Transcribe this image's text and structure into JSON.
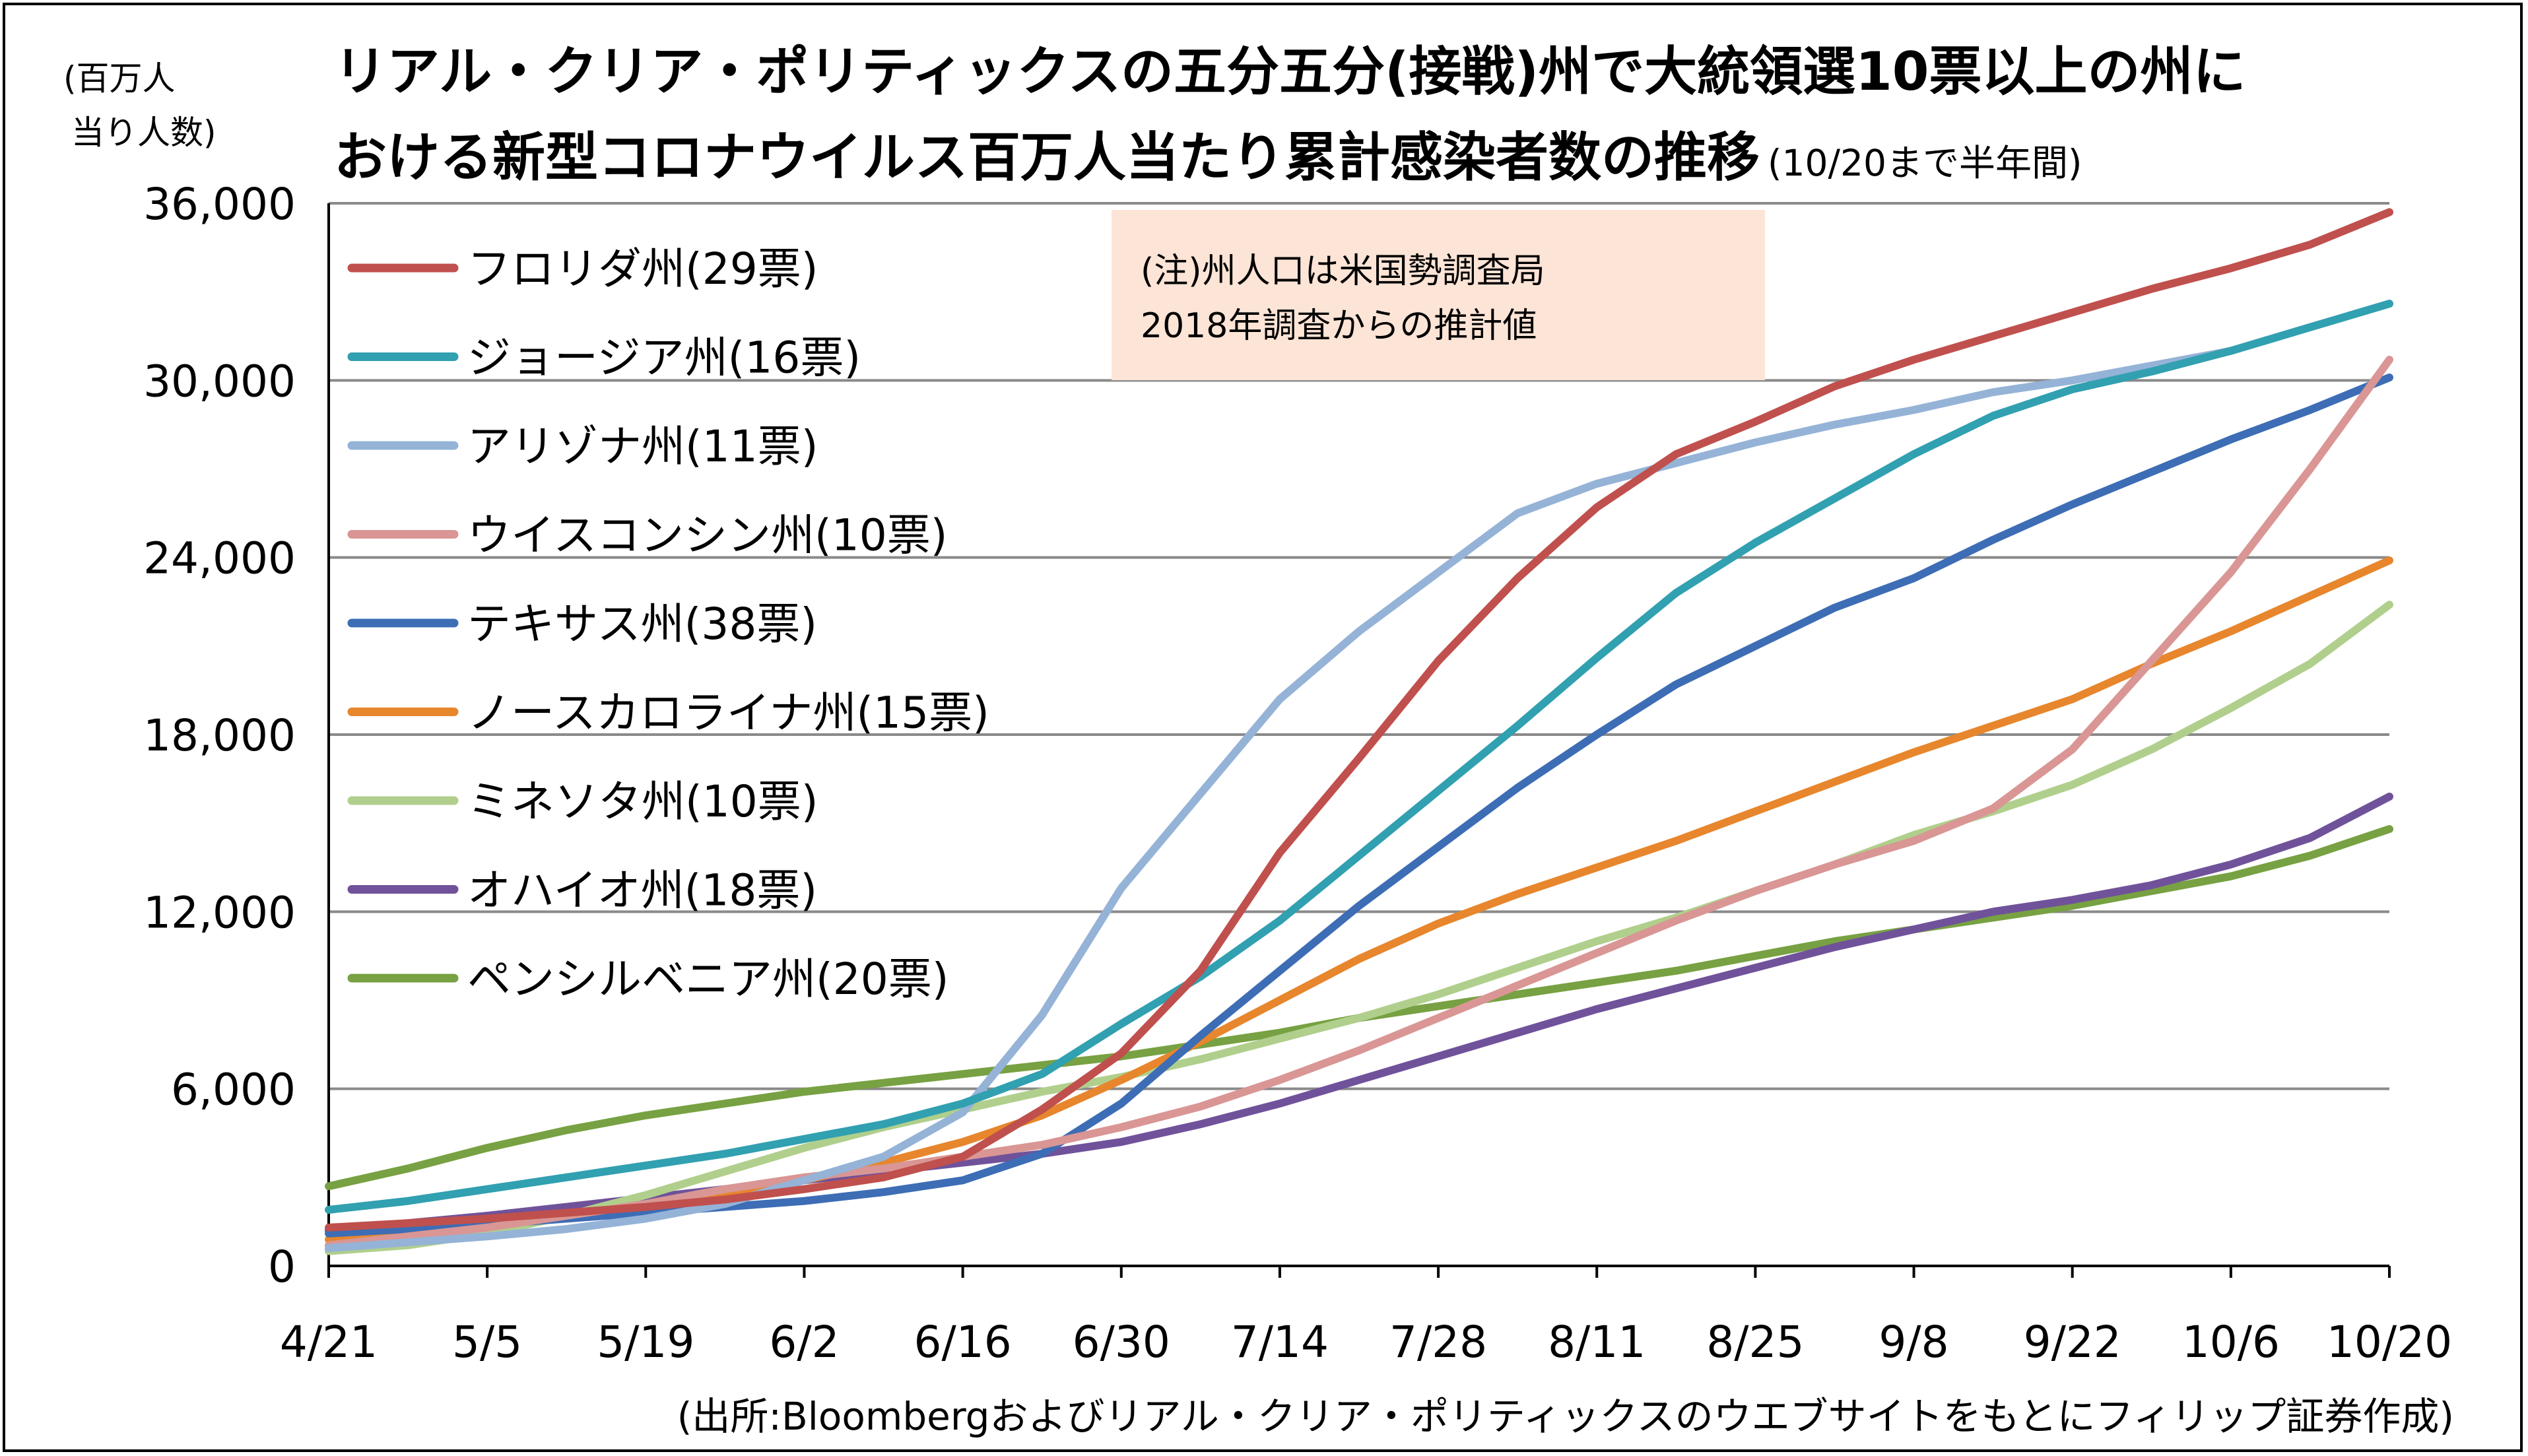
{
  "y_axis_label": [
    "(百万人",
    "当り人数)"
  ],
  "title": {
    "line1": "リアル・クリア・ポリティックスの五分五分(接戦)州で大統領選10票以上の州に",
    "line2": "おける新型コロナウイルス百万人当たり累計感染者数の推移",
    "line2_note": "(10/20まで半年間)"
  },
  "note": {
    "line1": "(注)州人口は米国勢調査局",
    "line2": "2018年調査からの推計値",
    "background": "#fce4d6"
  },
  "source": "(出所:Bloombergおよびリアル・クリア・ポリティックスのウエブサイトをもとにフィリップ証券作成)",
  "chart_data": {
    "type": "line",
    "x": [
      "4/21",
      "4/28",
      "5/5",
      "5/12",
      "5/19",
      "5/26",
      "6/2",
      "6/9",
      "6/16",
      "6/23",
      "6/30",
      "7/7",
      "7/14",
      "7/21",
      "7/28",
      "8/4",
      "8/11",
      "8/18",
      "8/25",
      "9/1",
      "9/8",
      "9/15",
      "9/22",
      "9/29",
      "10/6",
      "10/13",
      "10/20"
    ],
    "x_tick_labels": [
      "4/21",
      "5/5",
      "5/19",
      "6/2",
      "6/16",
      "6/30",
      "7/14",
      "7/28",
      "8/11",
      "8/25",
      "9/8",
      "9/22",
      "10/6",
      "10/20"
    ],
    "y_ticks": [
      "0",
      "6,000",
      "12,000",
      "18,000",
      "24,000",
      "30,000",
      "36,000"
    ],
    "y_tick_values": [
      0,
      6000,
      12000,
      18000,
      24000,
      30000,
      36000
    ],
    "ylim": [
      0,
      36000
    ],
    "grid": "horizontal",
    "legend_position": "top-left",
    "series": [
      {
        "name": "フロリダ州(29票)",
        "color": "#c0504d",
        "values": [
          1300,
          1450,
          1600,
          1800,
          2000,
          2250,
          2600,
          3000,
          3700,
          5300,
          7200,
          10000,
          14000,
          17200,
          20500,
          23300,
          25700,
          27500,
          28600,
          29800,
          30700,
          31500,
          32300,
          33100,
          33800,
          34600,
          35700
        ]
      },
      {
        "name": "ジョージア州(16票)",
        "color": "#31a0b0",
        "values": [
          1900,
          2200,
          2600,
          3000,
          3400,
          3800,
          4300,
          4800,
          5500,
          6500,
          8200,
          9800,
          11700,
          13900,
          16100,
          18300,
          20600,
          22800,
          24500,
          26000,
          27500,
          28800,
          29700,
          30300,
          31000,
          31800,
          32600
        ]
      },
      {
        "name": "アリゾナ州(11票)",
        "color": "#95b3d7",
        "values": [
          600,
          800,
          1000,
          1250,
          1600,
          2100,
          2900,
          3700,
          5200,
          8500,
          12800,
          16000,
          19200,
          21500,
          23500,
          25500,
          26500,
          27200,
          27900,
          28500,
          29000,
          29600,
          30000,
          30500,
          31000,
          31800,
          32600
        ]
      },
      {
        "name": "ウイスコンシン州(10票)",
        "color": "#d99694",
        "values": [
          700,
          1000,
          1300,
          1700,
          2100,
          2600,
          3000,
          3300,
          3700,
          4100,
          4700,
          5400,
          6300,
          7300,
          8400,
          9500,
          10600,
          11700,
          12700,
          13600,
          14400,
          15500,
          17500,
          20500,
          23500,
          27000,
          30700
        ]
      },
      {
        "name": "テキサス州(38票)",
        "color": "#3d6db5",
        "values": [
          1100,
          1250,
          1400,
          1600,
          1800,
          2000,
          2200,
          2500,
          2900,
          3800,
          5500,
          7800,
          10000,
          12200,
          14200,
          16200,
          18000,
          19700,
          21000,
          22300,
          23300,
          24600,
          25800,
          26900,
          28000,
          29000,
          30100
        ]
      },
      {
        "name": "ノースカロライナ州(15票)",
        "color": "#e7862c",
        "values": [
          900,
          1100,
          1350,
          1650,
          2000,
          2400,
          2900,
          3500,
          4200,
          5100,
          6300,
          7600,
          9000,
          10400,
          11600,
          12600,
          13500,
          14400,
          15400,
          16400,
          17400,
          18300,
          19200,
          20400,
          21500,
          22700,
          23900
        ]
      },
      {
        "name": "ミネソタ州(10票)",
        "color": "#b0cf8c",
        "values": [
          500,
          700,
          1100,
          1700,
          2400,
          3200,
          4000,
          4700,
          5300,
          5900,
          6400,
          7000,
          7700,
          8400,
          9200,
          10100,
          11000,
          11800,
          12700,
          13600,
          14600,
          15400,
          16300,
          17500,
          18900,
          20400,
          22400
        ]
      },
      {
        "name": "オハイオ州(18票)",
        "color": "#70529a",
        "values": [
          1200,
          1450,
          1700,
          2000,
          2300,
          2600,
          2900,
          3200,
          3500,
          3800,
          4200,
          4800,
          5500,
          6300,
          7100,
          7900,
          8700,
          9400,
          10100,
          10800,
          11400,
          12000,
          12400,
          12900,
          13600,
          14500,
          15900
        ]
      },
      {
        "name": "ペンシルベニア州(20票)",
        "color": "#77a142",
        "values": [
          2700,
          3300,
          4000,
          4600,
          5100,
          5500,
          5900,
          6200,
          6500,
          6800,
          7100,
          7500,
          7900,
          8400,
          8800,
          9200,
          9600,
          10000,
          10500,
          11000,
          11400,
          11800,
          12200,
          12700,
          13200,
          13900,
          14800
        ]
      }
    ]
  }
}
